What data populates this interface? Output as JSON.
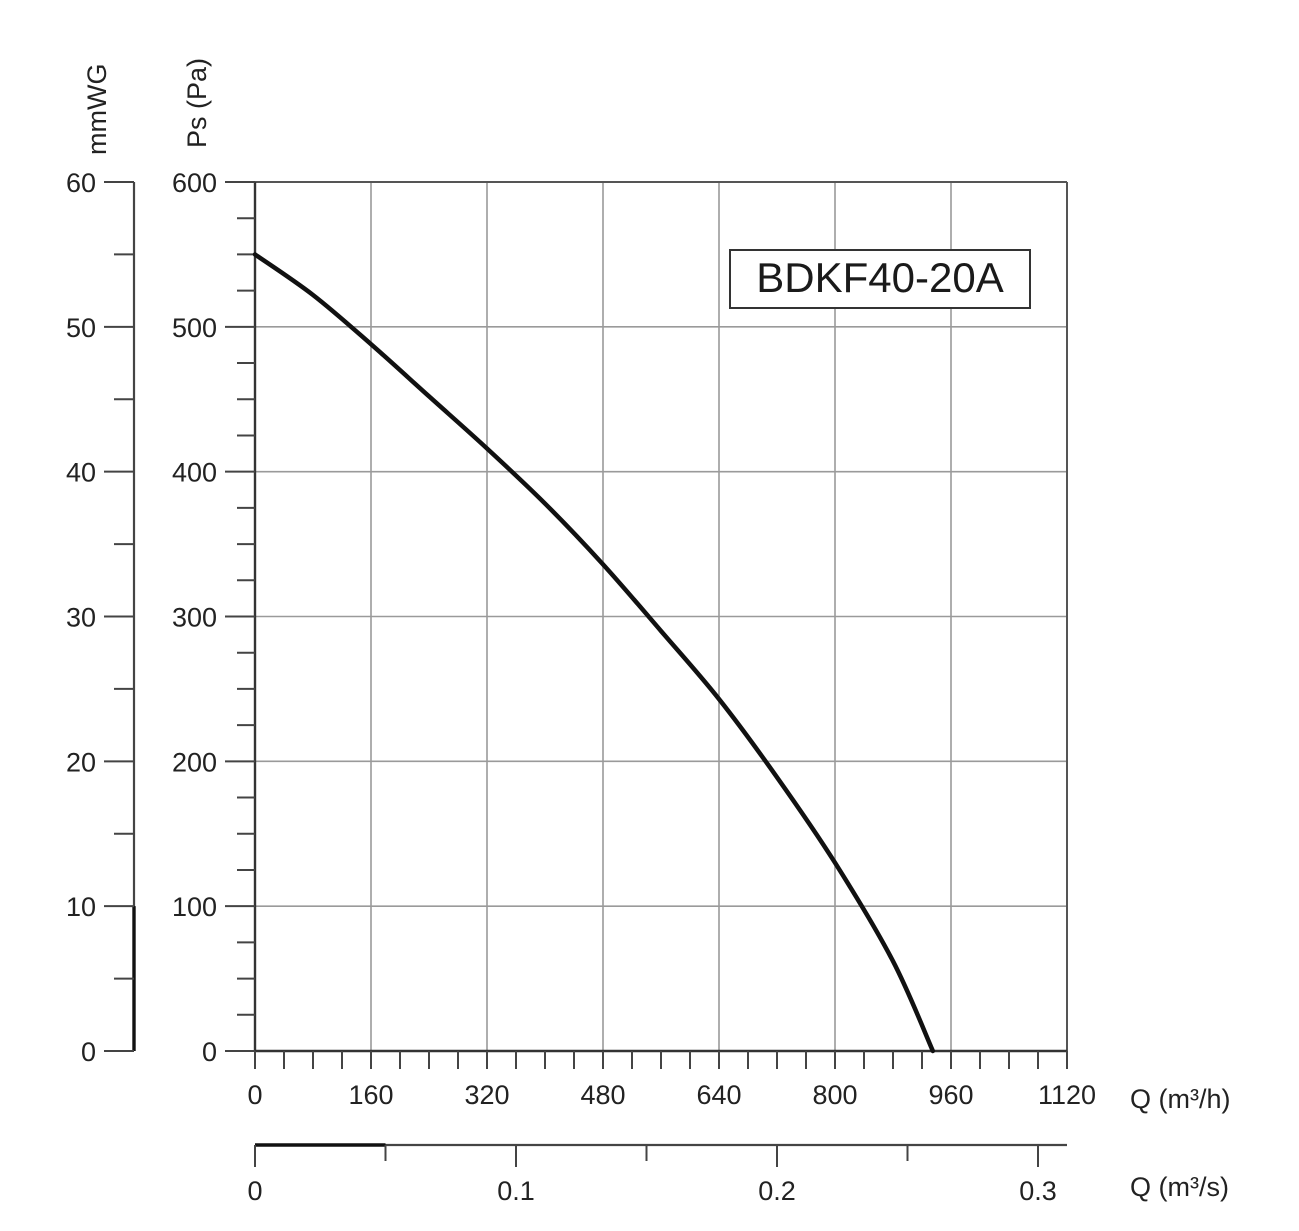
{
  "chart_data": {
    "type": "line",
    "model": "BDKF40-20A",
    "x_primary": {
      "label": "Q (m³/h)",
      "ticks": [
        0,
        160,
        320,
        480,
        640,
        800,
        960,
        1120
      ],
      "range": [
        0,
        1120
      ]
    },
    "x_secondary": {
      "label": "Q (m³/s)",
      "ticks": [
        "0",
        "0.1",
        "0.2",
        "0.3"
      ],
      "range": [
        0,
        0.31111
      ]
    },
    "y_primary": {
      "label": "Ps (Pa)",
      "ticks": [
        0,
        100,
        200,
        300,
        400,
        500,
        600
      ],
      "range": [
        0,
        600
      ]
    },
    "y_secondary": {
      "label": "mmWG",
      "ticks": [
        0,
        10,
        20,
        30,
        40,
        50,
        60
      ],
      "range": [
        0,
        60
      ]
    },
    "grid": true,
    "series": [
      {
        "x": [
          0,
          80,
          160,
          240,
          320,
          400,
          480,
          560,
          640,
          720,
          800,
          880,
          935
        ],
        "y": [
          550,
          522,
          488,
          452,
          416,
          378,
          336,
          290,
          243,
          189,
          130,
          62,
          0
        ]
      }
    ]
  }
}
